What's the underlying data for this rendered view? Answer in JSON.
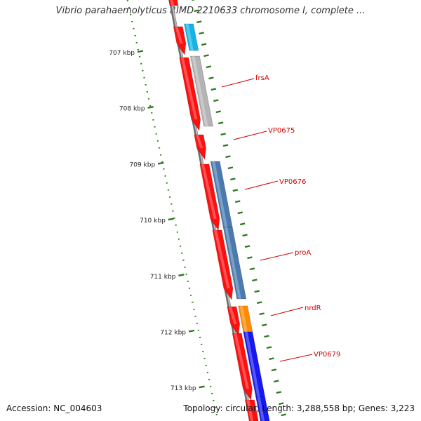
{
  "title": "Vibrio parahaemolyticus RIMD 2210633 chromosome I, complete ...",
  "footer": {
    "accession": "Accession: NC_004603",
    "summary": "Topology: circular; Length: 3,288,558 bp; Genes: 3,223"
  },
  "colors": {
    "backbone": "#8a8a8a",
    "gc_skew": "#2a7a1a",
    "cds": "#ff1010",
    "cds_dark": "#b80000",
    "label_red": "#d00000",
    "cyan": "#14b4e8",
    "grey": "#b4b4b4",
    "steel": "#4a7ab0",
    "orange": "#ff8c00",
    "blue": "#1818f0"
  },
  "ticks": [
    {
      "label": "707 kbp"
    },
    {
      "label": "708 kbp"
    },
    {
      "label": "709 kbp"
    },
    {
      "label": "710 kbp"
    },
    {
      "label": "711 kbp"
    },
    {
      "label": "712 kbp"
    },
    {
      "label": "713 kbp"
    }
  ],
  "genes": [
    {
      "name": "frsA"
    },
    {
      "name": "VP0675"
    },
    {
      "name": "VP0676"
    },
    {
      "name": "proA"
    },
    {
      "name": "nrdR"
    },
    {
      "name": "VP0679"
    }
  ]
}
